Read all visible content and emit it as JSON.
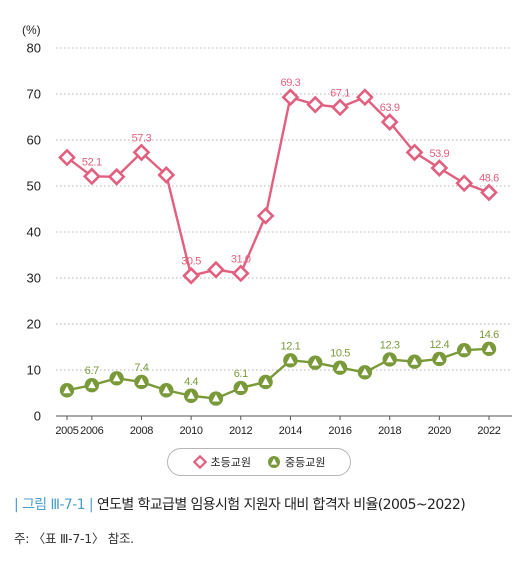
{
  "chart_data": {
    "type": "line",
    "unit_label": "(%)",
    "ylim": [
      0,
      80
    ],
    "yticks": [
      0,
      10,
      20,
      30,
      40,
      50,
      60,
      70,
      80
    ],
    "x": [
      2005,
      2006,
      2007,
      2008,
      2009,
      2010,
      2011,
      2012,
      2013,
      2014,
      2015,
      2016,
      2017,
      2018,
      2019,
      2020,
      2021,
      2022
    ],
    "xtick_labels": [
      "2005",
      "2006",
      "2008",
      "2010",
      "2012",
      "2014",
      "2016",
      "2018",
      "2020",
      "2022"
    ],
    "xtick_values": [
      2005,
      2006,
      2008,
      2010,
      2012,
      2014,
      2016,
      2018,
      2020,
      2022
    ],
    "grid": "horizontal dotted",
    "legend_position": "bottom-center",
    "series": [
      {
        "name": "초등교원",
        "color": "#e2607f",
        "marker": "diamond",
        "values": [
          56.2,
          52.1,
          52.0,
          57.3,
          52.4,
          30.5,
          31.8,
          31.0,
          43.5,
          69.3,
          67.7,
          67.1,
          69.3,
          63.9,
          57.3,
          53.9,
          50.6,
          48.6
        ],
        "labels": [
          {
            "x": 2006,
            "text": "52.1"
          },
          {
            "x": 2008,
            "text": "57.3"
          },
          {
            "x": 2010,
            "text": "30.5"
          },
          {
            "x": 2012,
            "text": "31.0"
          },
          {
            "x": 2014,
            "text": "69.3"
          },
          {
            "x": 2016,
            "text": "67.1"
          },
          {
            "x": 2018,
            "text": "63.9"
          },
          {
            "x": 2020,
            "text": "53.9"
          },
          {
            "x": 2022,
            "text": "48.6"
          }
        ]
      },
      {
        "name": "중등교원",
        "color": "#7a9a3a",
        "marker": "triangle",
        "values": [
          5.6,
          6.7,
          8.2,
          7.4,
          5.6,
          4.4,
          3.8,
          6.1,
          7.4,
          12.1,
          11.6,
          10.5,
          9.5,
          12.3,
          11.8,
          12.4,
          14.3,
          14.6
        ],
        "labels": [
          {
            "x": 2006,
            "text": "6.7"
          },
          {
            "x": 2008,
            "text": "7.4"
          },
          {
            "x": 2010,
            "text": "4.4"
          },
          {
            "x": 2012,
            "text": "6.1"
          },
          {
            "x": 2014,
            "text": "12.1"
          },
          {
            "x": 2016,
            "text": "10.5"
          },
          {
            "x": 2018,
            "text": "12.3"
          },
          {
            "x": 2020,
            "text": "12.4"
          },
          {
            "x": 2022,
            "text": "14.6"
          }
        ]
      }
    ]
  },
  "legend": {
    "items": [
      {
        "label": "초등교원",
        "color": "#e2607f",
        "icon": "diamond-marker-icon"
      },
      {
        "label": "중등교원",
        "color": "#7a9a3a",
        "icon": "triangle-marker-icon"
      }
    ]
  },
  "caption": {
    "figure_number": "그림 Ⅲ-7-1",
    "separator": "|",
    "title": "연도별 학교급별 임용시험 지원자 대비 합격자 비율(2005~2022)"
  },
  "note": "주: 〈표 Ⅲ-7-1〉 참조."
}
